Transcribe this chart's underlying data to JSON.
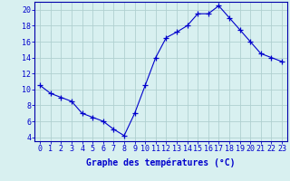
{
  "x": [
    0,
    1,
    2,
    3,
    4,
    5,
    6,
    7,
    8,
    9,
    10,
    11,
    12,
    13,
    14,
    15,
    16,
    17,
    18,
    19,
    20,
    21,
    22,
    23
  ],
  "y": [
    10.5,
    9.5,
    9.0,
    8.5,
    7.0,
    6.5,
    6.0,
    5.0,
    4.2,
    7.0,
    10.5,
    14.0,
    16.5,
    17.2,
    18.0,
    19.5,
    19.5,
    20.5,
    19.0,
    17.5,
    16.0,
    14.5,
    14.0,
    13.5
  ],
  "line_color": "#0000cc",
  "marker": "+",
  "marker_size": 4,
  "bg_color": "#d8f0f0",
  "grid_color": "#b0d0d0",
  "xlabel": "Graphe des températures (°C)",
  "xlabel_color": "#0000cc",
  "xlabel_fontsize": 7,
  "ylabel_ticks": [
    4,
    6,
    8,
    10,
    12,
    14,
    16,
    18,
    20
  ],
  "xlim": [
    -0.5,
    23.5
  ],
  "ylim": [
    3.5,
    21.0
  ],
  "tick_fontsize": 6,
  "tick_color": "#0000cc",
  "spine_color": "#0000aa"
}
